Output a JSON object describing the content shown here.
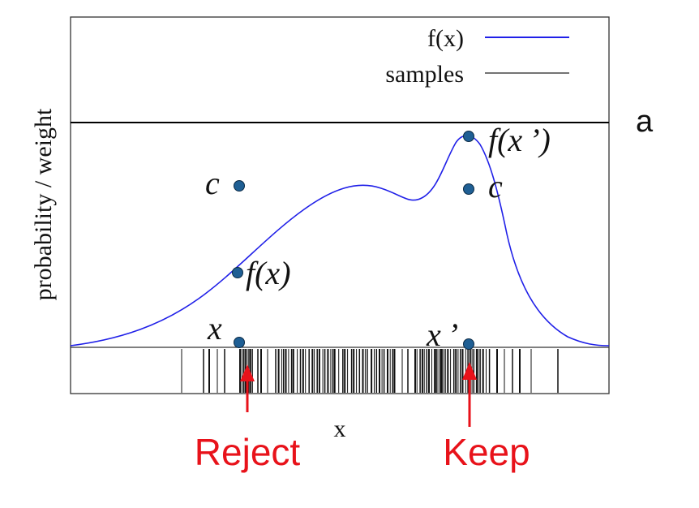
{
  "legend": {
    "fx_label": "f(x)",
    "samples_label": "samples",
    "fx_color": "#2020e8",
    "samples_color": "#222222"
  },
  "axes": {
    "ylabel": "probability / weight",
    "xlabel": "x"
  },
  "figure_letter": "a",
  "points": {
    "reject_c": "c",
    "reject_fx": "f(x)",
    "reject_x": "x",
    "keep_fx": "f(x ’)",
    "keep_c": "c",
    "keep_x": "x ’"
  },
  "annotations": {
    "reject": "Reject",
    "keep": "Keep",
    "color": "#e8121a"
  },
  "marker_color": "#1f5f94"
}
